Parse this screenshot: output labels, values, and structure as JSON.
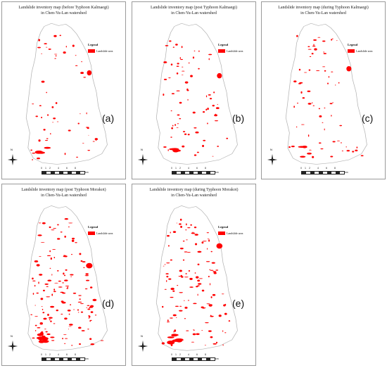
{
  "panels": [
    {
      "title_line1": "Landslide inventory map (before Typhoon Kalmaegi)",
      "title_line2": "in Chen-Yu-Lan watershed",
      "letter": "(a)",
      "density": 0.6
    },
    {
      "title_line1": "Landslide inventory map (post Typhoon Kalmaegi)",
      "title_line2": "in Chen-Yu-Lan watershed",
      "letter": "(b)",
      "density": 0.8
    },
    {
      "title_line1": "Landslide inventory map (during Typhoon Kalmaegi)",
      "title_line2": "in Chen-Yu-Lan watershed",
      "letter": "(c)",
      "density": 0.75
    },
    {
      "title_line1": "Landslide inventory map (post Typhoon Morakot)",
      "title_line2": "in Chen-Yu-Lan watershed",
      "letter": "(d)",
      "density": 1.6
    },
    {
      "title_line1": "Landslide inventory map (during Typhoon Morakot)",
      "title_line2": "in Chen-Yu-Lan watershed",
      "letter": "(e)",
      "density": 1.4
    }
  ],
  "legend": {
    "title": "Legend",
    "label": "Landslide area",
    "color": "#ff0000"
  },
  "scale": {
    "ticks": [
      "0",
      "1",
      "2",
      "4",
      "6",
      "8"
    ],
    "unit": "km"
  },
  "north_label": "N"
}
